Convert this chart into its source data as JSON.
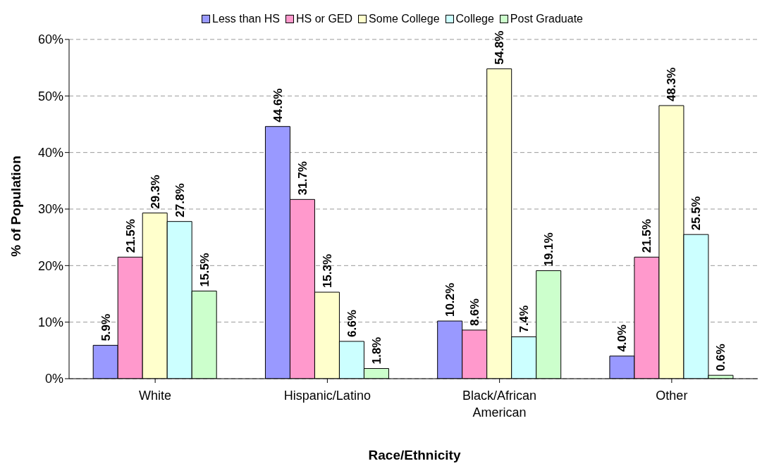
{
  "chart_data": {
    "type": "bar",
    "xlabel": "Race/Ethnicity",
    "ylabel": "% of Population",
    "categories": [
      "White",
      "Hispanic/Latino",
      "Black/African American",
      "Other"
    ],
    "series": [
      {
        "name": "Less than HS",
        "color": "#9999ff",
        "values": [
          5.9,
          44.6,
          10.2,
          4.0
        ],
        "value_labels": [
          "5.9%",
          "44.6%",
          "10.2%",
          "4.0%"
        ]
      },
      {
        "name": "HS or GED",
        "color": "#ff99cc",
        "values": [
          21.5,
          31.7,
          8.6,
          21.5
        ],
        "value_labels": [
          "21.5%",
          "31.7%",
          "8.6%",
          "21.5%"
        ]
      },
      {
        "name": "Some College",
        "color": "#ffffcc",
        "values": [
          29.3,
          15.3,
          54.8,
          48.3
        ],
        "value_labels": [
          "29.3%",
          "15.3%",
          "54.8%",
          "48.3%"
        ]
      },
      {
        "name": "College",
        "color": "#ccffff",
        "values": [
          27.8,
          6.6,
          7.4,
          25.5
        ],
        "value_labels": [
          "27.8%",
          "6.6%",
          "7.4%",
          "25.5%"
        ]
      },
      {
        "name": "Post Graduate",
        "color": "#ccffcc",
        "values": [
          15.5,
          1.8,
          19.1,
          0.6
        ],
        "value_labels": [
          "15.5%",
          "1.8%",
          "19.1%",
          "0.6%"
        ]
      }
    ],
    "ylim": [
      0,
      60
    ],
    "yticks": [
      {
        "value": 0,
        "label": "0%"
      },
      {
        "value": 10,
        "label": "10%"
      },
      {
        "value": 20,
        "label": "20%"
      },
      {
        "value": 30,
        "label": "30%"
      },
      {
        "value": 40,
        "label": "40%"
      },
      {
        "value": 50,
        "label": "50%"
      },
      {
        "value": 60,
        "label": "60%"
      }
    ],
    "grid": "y",
    "legend": "top"
  }
}
